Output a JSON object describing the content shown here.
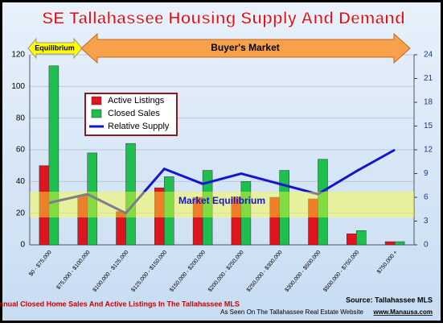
{
  "chart_data": {
    "type": "bar_line",
    "title": "SE Tallahassee Housing Supply And Demand",
    "categories": [
      "$0 - $75,000",
      "$75,000 - $100,000",
      "$100,000 - $125,000",
      "$125,000 - $150,000",
      "$150,000 - $200,000",
      "$200,000 - $250,000",
      "$250,000 - $300,000",
      "$300,000 - $500,000",
      "$500,000 - $750,000",
      "$750,000 +"
    ],
    "series": [
      {
        "name": "Active Listings",
        "color": "#e0141e",
        "values": [
          50,
          31,
          21,
          36,
          30,
          30,
          30,
          29,
          7,
          2
        ]
      },
      {
        "name": "Closed Sales",
        "color": "#1dbf4e",
        "values": [
          113,
          58,
          64,
          43,
          47,
          40,
          47,
          54,
          9,
          2
        ]
      },
      {
        "name": "Relative Supply",
        "color": "#1515d0",
        "axis": "y2",
        "values": [
          5.3,
          6.4,
          4.0,
          9.6,
          7.7,
          9.0,
          7.7,
          6.4,
          9.3,
          12.0
        ]
      }
    ],
    "ylim": [
      0,
      120
    ],
    "yticks": [
      0,
      20,
      40,
      60,
      80,
      100,
      120
    ],
    "y2lim": [
      0,
      24
    ],
    "y2ticks": [
      0,
      3,
      6,
      9,
      12,
      15,
      18,
      21,
      24
    ],
    "grid": true,
    "equilibrium_label": "Equilibrium",
    "buyers_market_label": "Buyer's Market",
    "market_equilibrium_label": "Market Equilibrium",
    "caption": "Annual Closed Home Sales And Active Listings In The Tallahassee MLS",
    "source": "Source: Tallahassee MLS",
    "website_note": "As Seen On The Tallahassee Real Estate Website",
    "website": "www.Manausa.com"
  }
}
